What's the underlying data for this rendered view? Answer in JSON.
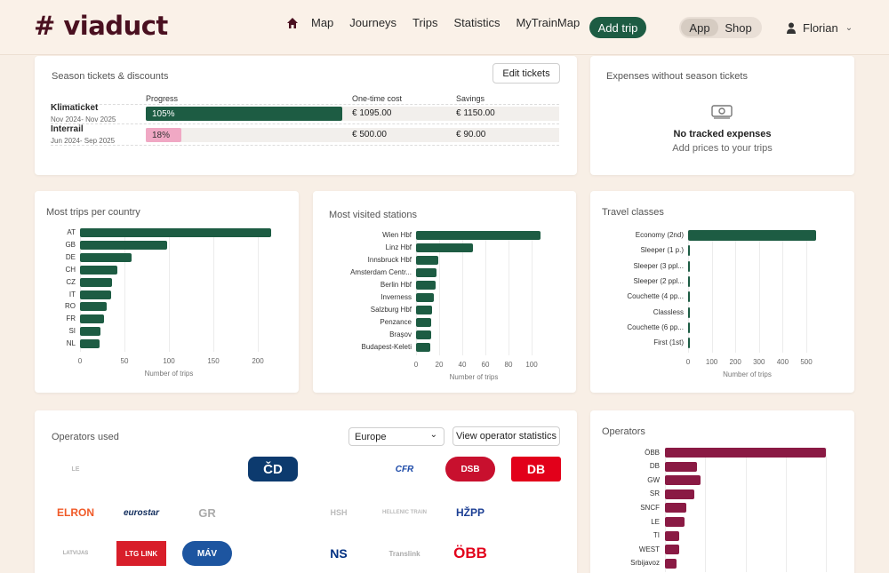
{
  "header": {
    "logo": "# viaduct",
    "nav": [
      "Map",
      "Journeys",
      "Trips",
      "Statistics",
      "MyTrainMap"
    ],
    "add_trip": "Add trip",
    "segment": {
      "active": "App",
      "other": "Shop"
    },
    "user": "Florian"
  },
  "season": {
    "title": "Season tickets & discounts",
    "edit_button": "Edit tickets",
    "headers": {
      "progress": "Progress",
      "cost": "One-time cost",
      "savings": "Savings"
    },
    "tickets": [
      {
        "name": "Klimaticket",
        "dates": "Nov 2024- Nov 2025",
        "progress_label": "105%",
        "progress": 1.0,
        "cost": "€ 1095.00",
        "savings": "€ 1150.00",
        "color": "#1d5c43",
        "text_color": "#ffffff"
      },
      {
        "name": "Interrail",
        "dates": "Jun 2024- Sep 2025",
        "progress_label": "18%",
        "progress": 0.18,
        "cost": "€ 500.00",
        "savings": "€ 90.00",
        "color": "#f0a8c4",
        "text_color": "#333333"
      }
    ]
  },
  "expenses": {
    "title": "Expenses without season tickets",
    "empty_title": "No tracked expenses",
    "empty_sub": "Add prices to your trips"
  },
  "charts": {
    "countries": {
      "title": "Most trips per country",
      "xlabel": "Number of trips",
      "color": "#1d5c43",
      "max": 200,
      "ticks": [
        "0",
        "50",
        "100",
        "150",
        "200"
      ],
      "categories": [
        "AT",
        "GB",
        "DE",
        "CH",
        "CZ",
        "IT",
        "RO",
        "FR",
        "SI",
        "NL"
      ],
      "values": [
        215,
        98,
        58,
        42,
        36,
        35,
        30,
        27,
        23,
        22
      ]
    },
    "stations": {
      "title": "Most visited stations",
      "xlabel": "Number of trips",
      "color": "#1d5c43",
      "max": 100,
      "ticks": [
        "0",
        "20",
        "40",
        "60",
        "80",
        "100"
      ],
      "categories": [
        "Wien Hbf",
        "Linz Hbf",
        "Innsbruck Hbf",
        "Amsterdam Centr...",
        "Berlin Hbf",
        "Inverness",
        "Salzburg Hbf",
        "Penzance",
        "Brașov",
        "Budapest-Keleti"
      ],
      "values": [
        120,
        49,
        19,
        18,
        17,
        15,
        14,
        13,
        13,
        12
      ]
    },
    "classes": {
      "title": "Travel classes",
      "xlabel": "Number of trips",
      "color": "#1d5c43",
      "max": 500,
      "ticks": [
        "0",
        "100",
        "200",
        "300",
        "400",
        "500"
      ],
      "categories": [
        "Economy (2nd)",
        "Sleeper (1 p.)",
        "Sleeper (3 ppl...",
        "Sleeper (2 ppl...",
        "Couchette (4 pp...",
        "Classless",
        "Couchette (6 pp...",
        "First (1st)"
      ],
      "values": [
        580,
        8,
        6,
        3,
        3,
        2,
        2,
        2
      ]
    },
    "operators": {
      "title": "Operators",
      "color": "#8a1a44",
      "categories": [
        "ÖBB",
        "DB",
        "GW",
        "SR",
        "SNCF",
        "LE",
        "TI",
        "WEST",
        "Srbijavoz"
      ],
      "values": [
        100,
        20,
        22,
        18,
        13,
        12,
        9,
        9,
        7
      ]
    }
  },
  "operators_used": {
    "title": "Operators used",
    "region": "Europe",
    "stats_button": "View operator statistics",
    "logos": [
      [
        "LE",
        "ČD",
        "CFR",
        "DSB",
        "DB"
      ],
      [
        "ELRON",
        "eurostar",
        "GR",
        "HSH",
        "HELLENIC TRAIN",
        "HŽPP"
      ],
      [
        "LATVIJAS",
        "LTG LINK",
        "MÁV",
        "NS",
        "Translink",
        "ÖBB"
      ]
    ]
  }
}
